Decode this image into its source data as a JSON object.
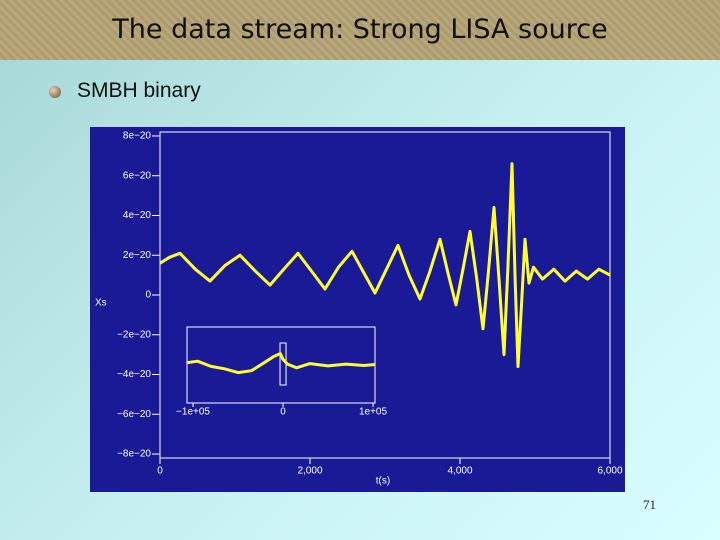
{
  "slide": {
    "title": "The data stream: Strong LISA source",
    "bullet": "SMBH binary",
    "page_number": 71
  },
  "chart_data": {
    "type": "line",
    "y_label": "Xs",
    "x_label": "t(s)",
    "x": [
      0,
      130,
      267,
      470,
      667,
      870,
      1067,
      1270,
      1467,
      1650,
      1840,
      2020,
      2200,
      2380,
      2560,
      2720,
      2867,
      3020,
      3173,
      3320,
      3467,
      3600,
      3733,
      3840,
      3947,
      4040,
      4133,
      4220,
      4307,
      4380,
      4453,
      4520,
      4587,
      4640,
      4693,
      4733,
      4773,
      4820,
      4867,
      4920,
      4980,
      5100,
      5250,
      5400,
      5550,
      5700,
      5850,
      6000
    ],
    "series": [
      {
        "color": "#ffff33",
        "values": [
          1.6e-20,
          1.9e-20,
          2.1e-20,
          1.3e-20,
          7e-21,
          1.5e-20,
          2e-20,
          1.2e-20,
          5e-21,
          1.3e-20,
          2.1e-20,
          1.2e-20,
          3e-21,
          1.4e-20,
          2.2e-20,
          1.1e-20,
          1e-21,
          1.3e-20,
          2.5e-20,
          1e-20,
          -2e-21,
          1.2e-20,
          2.8e-20,
          1.1e-20,
          -5e-21,
          1.3e-20,
          3.2e-20,
          9e-21,
          -1.7e-20,
          1.2e-20,
          4.4e-20,
          8e-21,
          -3e-20,
          1.5e-20,
          6.6e-20,
          1e-20,
          -3.6e-20,
          -5e-21,
          2.8e-20,
          6e-21,
          1.4e-20,
          8e-21,
          1.3e-20,
          7e-21,
          1.2e-20,
          8e-21,
          1.3e-20,
          1e-20
        ]
      }
    ],
    "xlim": [
      0,
      6000
    ],
    "ylim": [
      -8.2e-20,
      8.2e-20
    ],
    "xticks": [
      0,
      {
        "value": 2000,
        "label": "2,000"
      },
      {
        "value": 4000,
        "label": "4,000"
      },
      {
        "value": 6000,
        "label": "6,000"
      }
    ],
    "yticks": [
      {
        "value": 8e-20,
        "label": "8e−20"
      },
      {
        "value": 6e-20,
        "label": "6e−20"
      },
      {
        "value": 4e-20,
        "label": "4e−20"
      },
      {
        "value": 2e-20,
        "label": "2e−20"
      },
      0,
      {
        "value": -2e-20,
        "label": "−2e−20"
      },
      {
        "value": -4e-20,
        "label": "−4e−20"
      },
      {
        "value": -6e-20,
        "label": "−6e−20"
      },
      {
        "value": -8e-20,
        "label": "−8e−20"
      }
    ],
    "inset": {
      "type": "line",
      "color": "#ffff33",
      "x": [
        -106000,
        -95000,
        -80000,
        -65000,
        -50000,
        -35000,
        -20000,
        -10000,
        -3000,
        0,
        5000,
        15000,
        30000,
        50000,
        70000,
        90000,
        102000
      ],
      "values": [
        5e-21,
        8e-21,
        -3e-21,
        -8e-21,
        -1.6e-20,
        -1.2e-20,
        6e-21,
        1.8e-20,
        2.4e-20,
        1.2e-20,
        2e-21,
        -6e-21,
        3e-21,
        -2e-21,
        2e-21,
        -1e-21,
        1e-21
      ],
      "xlim": [
        -106700,
        102200
      ],
      "ylim": [
        -8e-20,
        8e-20
      ],
      "xticks": [
        {
          "value": -100000,
          "label": "−1e+05"
        },
        0,
        {
          "value": 100000,
          "label": "1e+05"
        }
      ]
    }
  }
}
